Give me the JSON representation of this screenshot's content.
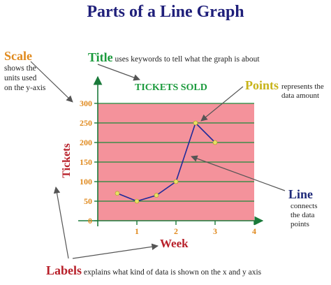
{
  "header": {
    "title": "Parts of a Line Graph"
  },
  "colors": {
    "title": "#1f1f7a",
    "orange_label": "#e08a1e",
    "green_label": "#1a9a3c",
    "yellow_label": "#c8b41a",
    "navy_label": "#1f2a7a",
    "red_label": "#b8202a",
    "plot_fill": "#f4929b",
    "grid": "#1a8a3a",
    "axis": "#1a7a3a",
    "line": "#1f2a9a",
    "point": "#e8e066"
  },
  "annotations": {
    "scale": {
      "keyword": "Scale",
      "text_lines": [
        "shows the",
        "units used",
        "on the y-axis"
      ]
    },
    "title": {
      "keyword": "Title",
      "text": "uses keywords to tell what the graph is about"
    },
    "points": {
      "keyword": "Points",
      "text_lines": [
        "represents the",
        "data amount"
      ]
    },
    "line": {
      "keyword": "Line",
      "text_lines": [
        "connects",
        "the data",
        "points"
      ]
    },
    "labels": {
      "keyword": "Labels",
      "text": "explains what kind of data is shown on the x and y axis"
    }
  },
  "chart_data": {
    "type": "line",
    "title": "TICKETS SOLD",
    "xlabel": "Week",
    "ylabel": "Tickets",
    "xlim": [
      0,
      4
    ],
    "ylim": [
      0,
      300
    ],
    "x_ticks": [
      1,
      2,
      3,
      4
    ],
    "y_ticks": [
      0,
      50,
      100,
      150,
      200,
      250,
      300
    ],
    "grid": true,
    "x": [
      0.5,
      1,
      1.5,
      2,
      2.5,
      3
    ],
    "values": [
      70,
      50,
      65,
      100,
      250,
      200
    ]
  }
}
